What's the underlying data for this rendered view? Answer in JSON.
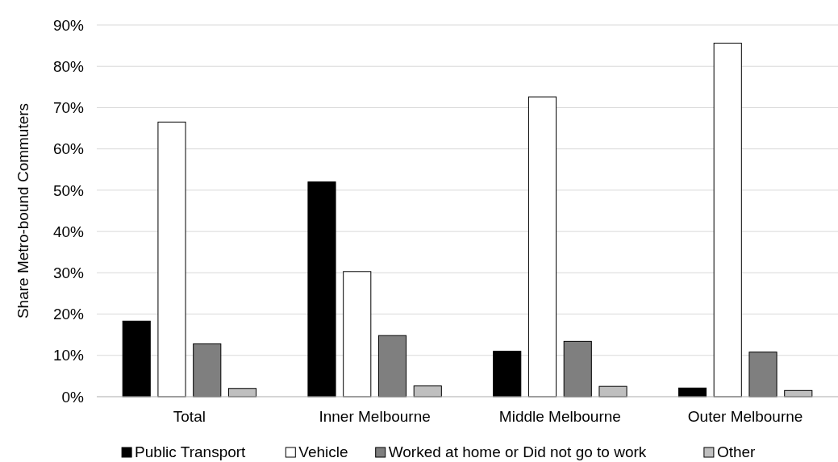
{
  "chart_data": {
    "type": "bar",
    "ylabel": "Share Metro-bound Commuters",
    "categories": [
      "Total",
      "Inner Melbourne",
      "Middle Melbourne",
      "Outer Melbourne"
    ],
    "series": [
      {
        "name": "Public Transport",
        "color": "#000000",
        "values": [
          18.3,
          52,
          11,
          2.1
        ]
      },
      {
        "name": "Vehicle",
        "color": "#ffffff",
        "values": [
          66.5,
          30.3,
          72.6,
          85.6
        ]
      },
      {
        "name": "Worked at home or Did not go to work",
        "color": "#7f7f7f",
        "values": [
          12.8,
          14.8,
          13.4,
          10.8
        ]
      },
      {
        "name": "Other",
        "color": "#bfbfbf",
        "values": [
          2,
          2.6,
          2.5,
          1.5
        ]
      }
    ],
    "ylim": [
      0,
      90
    ],
    "yticks": [
      {
        "value": 0,
        "label": "0%"
      },
      {
        "value": 10,
        "label": "10%"
      },
      {
        "value": 20,
        "label": "20%"
      },
      {
        "value": 30,
        "label": "30%"
      },
      {
        "value": 40,
        "label": "40%"
      },
      {
        "value": 50,
        "label": "50%"
      },
      {
        "value": 60,
        "label": "60%"
      },
      {
        "value": 70,
        "label": "70%"
      },
      {
        "value": 80,
        "label": "80%"
      },
      {
        "value": 90,
        "label": "90%"
      }
    ],
    "grid": "y",
    "legend": "bottom"
  }
}
